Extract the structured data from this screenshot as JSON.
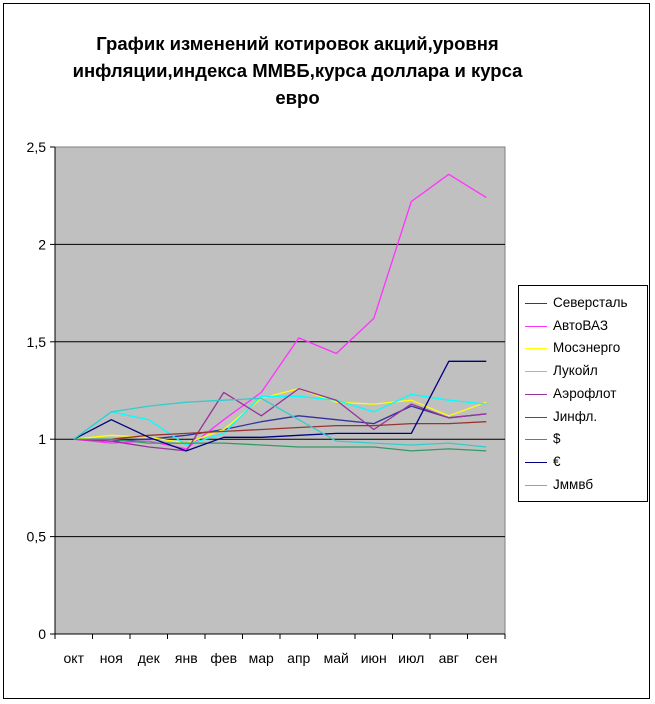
{
  "chart_data": {
    "type": "line",
    "title": "График изменений котировок акций,уровня инфляции,индекса ММВБ,курса доллара и курса евро",
    "xlabel": "",
    "ylabel": "",
    "ylim": [
      0,
      2.5
    ],
    "yticks": [
      "0",
      "0,5",
      "1",
      "1,5",
      "2",
      "2,5"
    ],
    "ytick_values": [
      0,
      0.5,
      1,
      1.5,
      2,
      2.5
    ],
    "categories": [
      "окт",
      "ноя",
      "дек",
      "янв",
      "фев",
      "мар",
      "апр",
      "май",
      "июн",
      "июл",
      "авг",
      "сен"
    ],
    "grid": "horizontal",
    "legend_position": "right",
    "plot_background": "#c0c0c0",
    "series": [
      {
        "name": "Северсталь",
        "color": "#333399",
        "values": [
          1.0,
          0.99,
          1.0,
          1.02,
          1.05,
          1.09,
          1.12,
          1.1,
          1.08,
          1.17,
          1.11,
          1.13
        ]
      },
      {
        "name": "АвтоВАЗ",
        "color": "#ff33ff",
        "values": [
          1.0,
          0.98,
          0.99,
          0.95,
          1.1,
          1.24,
          1.52,
          1.44,
          1.62,
          2.22,
          2.36,
          2.24
        ]
      },
      {
        "name": "Мосэнерго",
        "color": "#ffff00",
        "values": [
          1.0,
          1.02,
          1.01,
          0.98,
          1.05,
          1.21,
          1.26,
          1.19,
          1.18,
          1.2,
          1.12,
          1.19
        ]
      },
      {
        "name": "Лукойл",
        "color": "#00ffff",
        "values": [
          1.0,
          1.14,
          1.1,
          0.97,
          1.03,
          1.22,
          1.22,
          1.2,
          1.14,
          1.23,
          1.2,
          1.18
        ]
      },
      {
        "name": "Аэрофлот",
        "color": "#993399",
        "values": [
          1.0,
          0.99,
          0.96,
          0.94,
          1.24,
          1.12,
          1.26,
          1.2,
          1.05,
          1.18,
          1.11,
          1.13
        ]
      },
      {
        "name": "Jинфл.",
        "color": "#993333",
        "values": [
          1.0,
          1.0,
          1.02,
          1.03,
          1.04,
          1.05,
          1.06,
          1.07,
          1.07,
          1.08,
          1.08,
          1.09
        ]
      },
      {
        "name": "$",
        "color": "#339966",
        "values": [
          1.0,
          1.0,
          0.98,
          0.98,
          0.98,
          0.97,
          0.96,
          0.96,
          0.96,
          0.94,
          0.95,
          0.94
        ]
      },
      {
        "name": "€",
        "color": "#000080",
        "values": [
          1.0,
          1.1,
          1.01,
          0.94,
          1.01,
          1.01,
          1.02,
          1.03,
          1.03,
          1.03,
          1.4,
          1.4
        ]
      },
      {
        "name": "Jммвб",
        "color": "#33cccc",
        "values": [
          1.0,
          1.14,
          1.17,
          1.19,
          1.2,
          1.21,
          1.1,
          0.99,
          0.98,
          0.97,
          0.98,
          0.96
        ]
      }
    ]
  }
}
